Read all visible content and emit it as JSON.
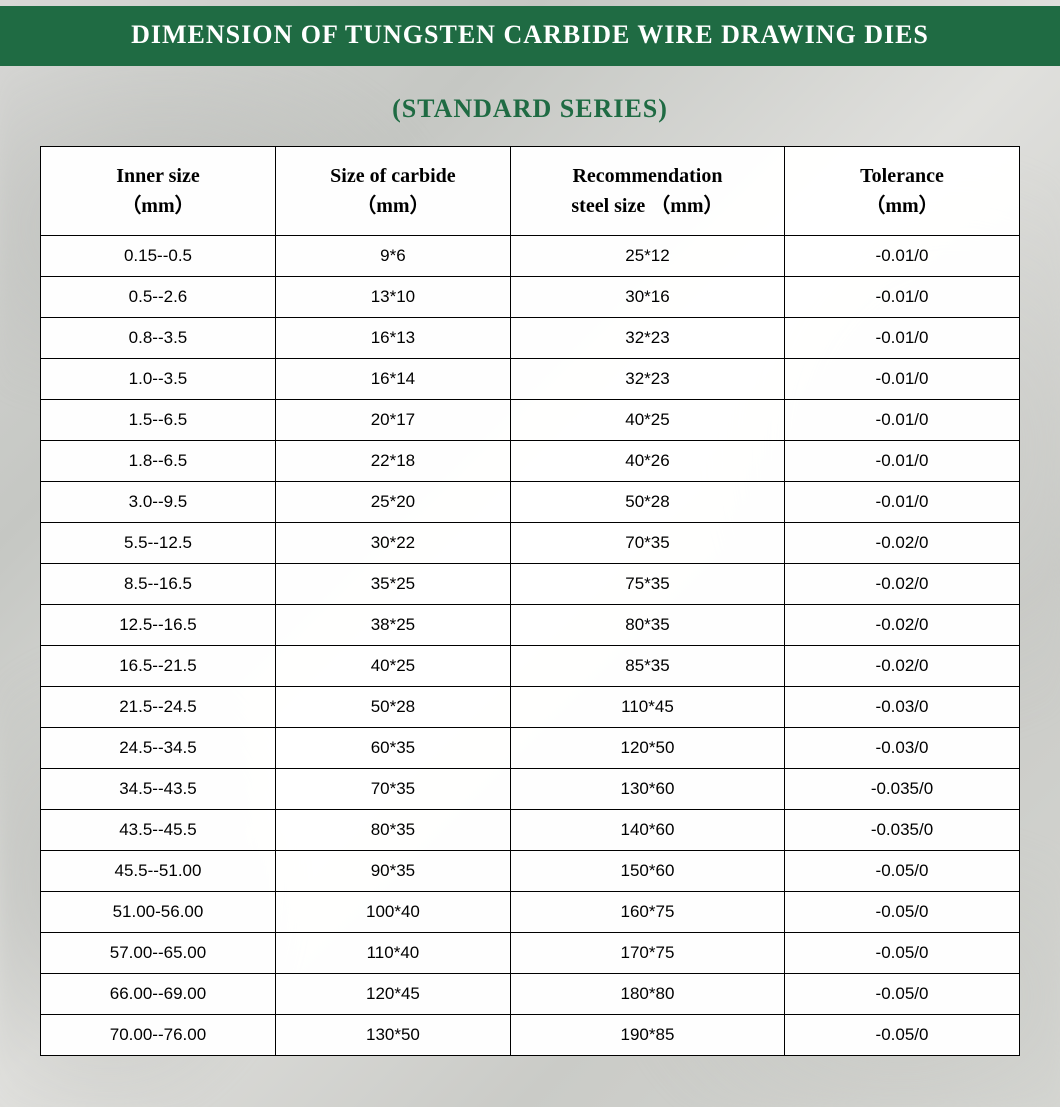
{
  "title": "DIMENSION OF TUNGSTEN CARBIDE WIRE DRAWING DIES",
  "subtitle": "(STANDARD SERIES)",
  "colors": {
    "title_bg": "#1f6b43",
    "title_text": "#ffffff",
    "subtitle_text": "#1f6b43",
    "border": "#000000",
    "cell_bg": "rgba(255,255,255,0.85)",
    "body_bg": "#d5d6d2"
  },
  "typography": {
    "title_fontsize": 26,
    "subtitle_fontsize": 26,
    "header_fontsize": 20,
    "cell_fontsize": 17,
    "title_font": "Georgia serif",
    "header_font": "Georgia serif",
    "cell_font": "Arial sans-serif"
  },
  "table": {
    "columns": [
      {
        "line1": "Inner size",
        "line2": "（mm）",
        "width_pct": 24
      },
      {
        "line1": "Size of carbide",
        "line2": "（mm）",
        "width_pct": 24
      },
      {
        "line1": "Recommendation",
        "line2": "steel size （mm）",
        "width_pct": 28
      },
      {
        "line1": "Tolerance",
        "line2": "（mm）",
        "width_pct": 24
      }
    ],
    "rows": [
      [
        "0.15--0.5",
        "9*6",
        "25*12",
        "-0.01/0"
      ],
      [
        "0.5--2.6",
        "13*10",
        "30*16",
        "-0.01/0"
      ],
      [
        "0.8--3.5",
        "16*13",
        "32*23",
        "-0.01/0"
      ],
      [
        "1.0--3.5",
        "16*14",
        "32*23",
        "-0.01/0"
      ],
      [
        "1.5--6.5",
        "20*17",
        "40*25",
        "-0.01/0"
      ],
      [
        "1.8--6.5",
        "22*18",
        "40*26",
        "-0.01/0"
      ],
      [
        "3.0--9.5",
        "25*20",
        "50*28",
        "-0.01/0"
      ],
      [
        "5.5--12.5",
        "30*22",
        "70*35",
        "-0.02/0"
      ],
      [
        "8.5--16.5",
        "35*25",
        "75*35",
        "-0.02/0"
      ],
      [
        "12.5--16.5",
        "38*25",
        "80*35",
        "-0.02/0"
      ],
      [
        "16.5--21.5",
        "40*25",
        "85*35",
        "-0.02/0"
      ],
      [
        "21.5--24.5",
        "50*28",
        "110*45",
        "-0.03/0"
      ],
      [
        "24.5--34.5",
        "60*35",
        "120*50",
        "-0.03/0"
      ],
      [
        "34.5--43.5",
        "70*35",
        "130*60",
        "-0.035/0"
      ],
      [
        "43.5--45.5",
        "80*35",
        "140*60",
        "-0.035/0"
      ],
      [
        "45.5--51.00",
        "90*35",
        "150*60",
        "-0.05/0"
      ],
      [
        "51.00-56.00",
        "100*40",
        "160*75",
        "-0.05/0"
      ],
      [
        "57.00--65.00",
        "110*40",
        "170*75",
        "-0.05/0"
      ],
      [
        "66.00--69.00",
        "120*45",
        "180*80",
        "-0.05/0"
      ],
      [
        "70.00--76.00",
        "130*50",
        "190*85",
        "-0.05/0"
      ]
    ]
  }
}
